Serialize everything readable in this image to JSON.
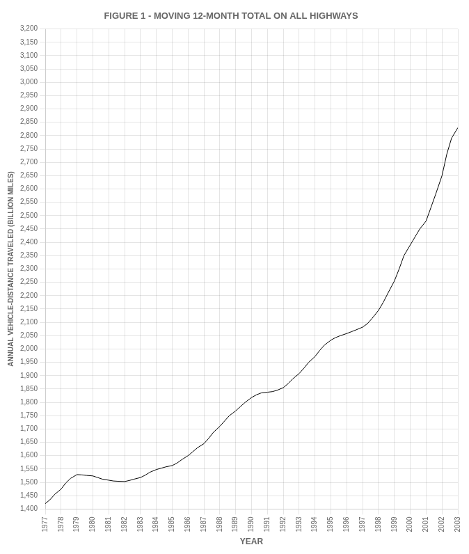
{
  "chart_data": {
    "type": "line",
    "title": "FIGURE 1 - MOVING 12-MONTH TOTAL ON ALL HIGHWAYS",
    "x_label": "YEAR",
    "y_label": "ANNUAL VEHICLE-DISTANCE TRAVELED (BILLION MILES)",
    "x": [
      1977.0,
      1977.3,
      1977.6,
      1978.0,
      1978.3,
      1978.6,
      1979.0,
      1979.3,
      1979.6,
      1980.0,
      1980.3,
      1980.6,
      1981.0,
      1981.3,
      1981.6,
      1982.0,
      1982.3,
      1982.6,
      1983.0,
      1983.3,
      1983.6,
      1984.0,
      1984.3,
      1984.6,
      1985.0,
      1985.3,
      1985.6,
      1986.0,
      1986.3,
      1986.6,
      1987.0,
      1987.3,
      1987.6,
      1988.0,
      1988.3,
      1988.6,
      1989.0,
      1989.3,
      1989.6,
      1990.0,
      1990.3,
      1990.6,
      1991.0,
      1991.3,
      1991.6,
      1992.0,
      1992.3,
      1992.6,
      1993.0,
      1993.3,
      1993.6,
      1994.0,
      1994.3,
      1994.6,
      1995.0,
      1995.3,
      1995.6,
      1996.0,
      1996.3,
      1996.6,
      1997.0,
      1997.3,
      1997.6,
      1998.0,
      1998.3,
      1998.6,
      1999.0,
      1999.3,
      1999.6,
      2000.0,
      2000.3,
      2000.6,
      2001.0,
      2001.3,
      2001.6,
      2002.0,
      2002.3,
      2002.6,
      2003.0
    ],
    "values": [
      1420,
      1435,
      1455,
      1475,
      1498,
      1515,
      1529,
      1528,
      1526,
      1524,
      1518,
      1512,
      1508,
      1505,
      1504,
      1503,
      1507,
      1512,
      1518,
      1527,
      1538,
      1548,
      1553,
      1558,
      1563,
      1572,
      1585,
      1600,
      1615,
      1630,
      1645,
      1665,
      1688,
      1710,
      1730,
      1750,
      1768,
      1784,
      1800,
      1818,
      1828,
      1835,
      1838,
      1840,
      1845,
      1855,
      1870,
      1888,
      1908,
      1928,
      1950,
      1972,
      1995,
      2015,
      2033,
      2043,
      2050,
      2058,
      2065,
      2072,
      2082,
      2095,
      2115,
      2145,
      2175,
      2210,
      2255,
      2300,
      2350,
      2390,
      2420,
      2450,
      2480,
      2530,
      2580,
      2650,
      2730,
      2790,
      2830
    ],
    "color": "#000000",
    "xlim": [
      1977,
      2003
    ],
    "xticks": [
      1977,
      1978,
      1979,
      1980,
      1981,
      1982,
      1983,
      1984,
      1985,
      1986,
      1987,
      1988,
      1989,
      1990,
      1991,
      1992,
      1993,
      1994,
      1995,
      1996,
      1997,
      1998,
      1999,
      2000,
      2001,
      2002,
      2003
    ],
    "ylim": [
      1400,
      3200
    ],
    "yticks": [
      {
        "value": 1400,
        "label": "1,400"
      },
      {
        "value": 1450,
        "label": "1,450"
      },
      {
        "value": 1500,
        "label": "1,500"
      },
      {
        "value": 1550,
        "label": "1,550"
      },
      {
        "value": 1600,
        "label": "1,600"
      },
      {
        "value": 1650,
        "label": "1,650"
      },
      {
        "value": 1700,
        "label": "1,700"
      },
      {
        "value": 1750,
        "label": "1,750"
      },
      {
        "value": 1800,
        "label": "1,800"
      },
      {
        "value": 1850,
        "label": "1,850"
      },
      {
        "value": 1900,
        "label": "1,900"
      },
      {
        "value": 1950,
        "label": "1,950"
      },
      {
        "value": 2000,
        "label": "2,000"
      },
      {
        "value": 2050,
        "label": "2,050"
      },
      {
        "value": 2100,
        "label": "2,100"
      },
      {
        "value": 2150,
        "label": "2,150"
      },
      {
        "value": 2200,
        "label": "2,200"
      },
      {
        "value": 2250,
        "label": "2,250"
      },
      {
        "value": 2300,
        "label": "2,300"
      },
      {
        "value": 2350,
        "label": "2,350"
      },
      {
        "value": 2400,
        "label": "2,400"
      },
      {
        "value": 2450,
        "label": "2,450"
      },
      {
        "value": 2500,
        "label": "2,500"
      },
      {
        "value": 2550,
        "label": "2,550"
      },
      {
        "value": 2600,
        "label": "2,600"
      },
      {
        "value": 2650,
        "label": "2,650"
      },
      {
        "value": 2700,
        "label": "2,700"
      },
      {
        "value": 2750,
        "label": "2,750"
      },
      {
        "value": 2800,
        "label": "2,800"
      },
      {
        "value": 2850,
        "label": "2,850"
      },
      {
        "value": 2900,
        "label": "2,900"
      },
      {
        "value": 2950,
        "label": "2,950"
      },
      {
        "value": 3000,
        "label": "3,000"
      },
      {
        "value": 3050,
        "label": "3,050"
      },
      {
        "value": 3100,
        "label": "3,100"
      },
      {
        "value": 3150,
        "label": "3,150"
      },
      {
        "value": 3200,
        "label": "3,200"
      }
    ],
    "grid": true
  }
}
